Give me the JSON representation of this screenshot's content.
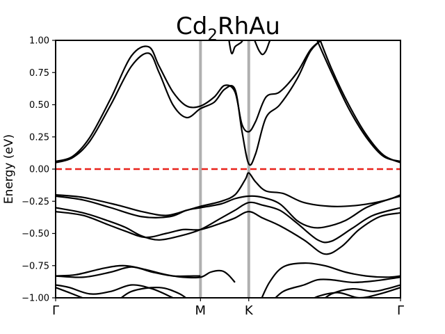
{
  "chart_data": {
    "type": "line",
    "title_main": "Cd",
    "title_sub": "2",
    "title_rest": "RhAu",
    "ylabel": "Energy (eV)",
    "ylim": [
      -1.0,
      1.0
    ],
    "xlim": [
      0,
      1
    ],
    "yticks": [
      1.0,
      0.75,
      0.5,
      0.25,
      0.0,
      -0.25,
      -0.5,
      -0.75,
      -1.0
    ],
    "ytick_labels": [
      "1.00",
      "0.75",
      "0.50",
      "0.25",
      "0.00",
      "−0.25",
      "−0.50",
      "−0.75",
      "−1.00"
    ],
    "kpoints": [
      {
        "label": "Γ",
        "x": 0.0
      },
      {
        "label": "M",
        "x": 0.42
      },
      {
        "label": "K",
        "x": 0.56
      },
      {
        "label": "Γ",
        "x": 1.0
      }
    ],
    "vlines": [
      0.42,
      0.56
    ],
    "vline_color": "#b0b0b0",
    "fermi_level": 0.0,
    "fermi_color": "#e8221b",
    "band_color": "#000000",
    "series": [
      {
        "x": [
          0,
          0.05,
          0.1,
          0.16,
          0.22,
          0.27,
          0.3,
          0.34,
          0.38,
          0.42,
          0.46,
          0.49,
          0.52,
          0.54,
          0.56,
          0.58,
          0.61,
          0.65,
          0.7,
          0.74,
          0.78,
          0.8
        ],
        "y": [
          0.06,
          0.1,
          0.25,
          0.55,
          0.88,
          0.95,
          0.8,
          0.6,
          0.49,
          0.49,
          0.56,
          0.65,
          0.6,
          0.35,
          0.29,
          0.37,
          0.56,
          0.6,
          0.75,
          0.93,
          1.02,
          1.05
        ]
      },
      {
        "x": [
          0,
          0.05,
          0.1,
          0.16,
          0.22,
          0.27,
          0.3,
          0.34,
          0.38,
          0.42,
          0.46,
          0.49,
          0.52,
          0.54,
          0.56,
          0.58,
          0.61,
          0.65,
          0.7,
          0.74,
          0.78,
          0.8
        ],
        "y": [
          0.05,
          0.09,
          0.22,
          0.5,
          0.8,
          0.9,
          0.75,
          0.5,
          0.4,
          0.47,
          0.52,
          0.62,
          0.62,
          0.3,
          0.04,
          0.12,
          0.4,
          0.5,
          0.7,
          0.92,
          1.02,
          1.05
        ]
      },
      {
        "x": [
          0.75,
          0.8,
          0.85,
          0.9,
          0.95,
          1.0
        ],
        "y": [
          1.05,
          0.75,
          0.47,
          0.25,
          0.1,
          0.06
        ]
      },
      {
        "x": [
          0.76,
          0.8,
          0.85,
          0.9,
          0.95,
          1.0
        ],
        "y": [
          1.05,
          0.78,
          0.5,
          0.27,
          0.11,
          0.05
        ]
      },
      {
        "x": [
          0.5,
          0.51,
          0.52,
          0.53,
          0.54,
          0.55
        ],
        "y": [
          1.05,
          0.9,
          0.95,
          0.97,
          0.99,
          1.05
        ]
      },
      {
        "x": [
          0.57,
          0.58,
          0.59,
          0.6,
          0.61,
          0.62,
          0.63
        ],
        "y": [
          1.05,
          0.98,
          0.92,
          0.89,
          0.92,
          0.99,
          1.05
        ]
      },
      {
        "x": [
          0,
          0.08,
          0.18,
          0.25,
          0.32,
          0.38,
          0.42,
          0.48,
          0.52,
          0.55,
          0.56,
          0.58,
          0.61,
          0.66,
          0.72,
          0.8,
          0.88,
          0.96,
          1.0
        ],
        "y": [
          -0.2,
          -0.22,
          -0.28,
          -0.33,
          -0.36,
          -0.32,
          -0.29,
          -0.25,
          -0.2,
          -0.08,
          -0.03,
          -0.1,
          -0.17,
          -0.19,
          -0.26,
          -0.29,
          -0.28,
          -0.24,
          -0.2
        ]
      },
      {
        "x": [
          0,
          0.08,
          0.16,
          0.25,
          0.33,
          0.38,
          0.42,
          0.48,
          0.52,
          0.56,
          0.6,
          0.65,
          0.7,
          0.74,
          0.78,
          0.84,
          0.9,
          0.96,
          1.0
        ],
        "y": [
          -0.21,
          -0.24,
          -0.3,
          -0.37,
          -0.37,
          -0.32,
          -0.3,
          -0.27,
          -0.23,
          -0.21,
          -0.22,
          -0.27,
          -0.4,
          -0.45,
          -0.45,
          -0.4,
          -0.3,
          -0.24,
          -0.21
        ]
      },
      {
        "x": [
          0,
          0.08,
          0.15,
          0.2,
          0.25,
          0.3,
          0.36,
          0.42,
          0.48,
          0.52,
          0.56,
          0.6,
          0.65,
          0.7,
          0.76,
          0.8,
          0.86,
          0.92,
          1.0
        ],
        "y": [
          -0.3,
          -0.34,
          -0.4,
          -0.45,
          -0.52,
          -0.55,
          -0.52,
          -0.47,
          -0.38,
          -0.32,
          -0.26,
          -0.28,
          -0.32,
          -0.42,
          -0.55,
          -0.56,
          -0.46,
          -0.36,
          -0.3
        ]
      },
      {
        "x": [
          0,
          0.08,
          0.15,
          0.2,
          0.26,
          0.32,
          0.37,
          0.42,
          0.48,
          0.52,
          0.56,
          0.6,
          0.65,
          0.72,
          0.78,
          0.83,
          0.88,
          0.94,
          1.0
        ],
        "y": [
          -0.33,
          -0.36,
          -0.43,
          -0.48,
          -0.53,
          -0.5,
          -0.47,
          -0.47,
          -0.42,
          -0.38,
          -0.33,
          -0.38,
          -0.44,
          -0.55,
          -0.66,
          -0.6,
          -0.47,
          -0.37,
          -0.34
        ]
      },
      {
        "x": [
          0,
          0.06,
          0.14,
          0.2,
          0.26,
          0.32,
          0.37,
          0.42,
          0.45,
          0.48,
          0.5,
          0.52
        ],
        "y": [
          -0.83,
          -0.82,
          -0.77,
          -0.75,
          -0.78,
          -0.82,
          -0.84,
          -0.84,
          -0.8,
          -0.79,
          -0.82,
          -0.88
        ]
      },
      {
        "x": [
          0,
          0.08,
          0.16,
          0.22,
          0.28,
          0.34,
          0.4,
          0.42
        ],
        "y": [
          -0.83,
          -0.84,
          -0.8,
          -0.76,
          -0.8,
          -0.83,
          -0.83,
          -0.83
        ]
      },
      {
        "x": [
          0.59,
          0.62,
          0.66,
          0.72,
          0.78,
          0.84,
          0.9,
          0.96,
          1.0
        ],
        "y": [
          -1.05,
          -0.88,
          -0.76,
          -0.73,
          -0.75,
          -0.8,
          -0.83,
          -0.84,
          -0.83
        ]
      },
      {
        "x": [
          0.62,
          0.66,
          0.72,
          0.76,
          0.8,
          0.86,
          0.92,
          1.0
        ],
        "y": [
          -1.05,
          -0.95,
          -0.9,
          -0.86,
          -0.86,
          -0.88,
          -0.87,
          -0.84
        ]
      },
      {
        "x": [
          0,
          0.04,
          0.1,
          0.16,
          0.22,
          0.28,
          0.34,
          0.38
        ],
        "y": [
          -0.9,
          -0.92,
          -0.97,
          -0.95,
          -0.9,
          -0.93,
          -1.0,
          -1.05
        ]
      },
      {
        "x": [
          0,
          0.04,
          0.1,
          0.16,
          0.22,
          0.3,
          0.36,
          0.4
        ],
        "y": [
          -0.92,
          -0.96,
          -1.02,
          -1.05,
          -0.95,
          -0.92,
          -0.97,
          -1.05
        ]
      },
      {
        "x": [
          0.76,
          0.8,
          0.86,
          0.92,
          0.96,
          1.0
        ],
        "y": [
          -1.05,
          -0.97,
          -0.93,
          -0.95,
          -0.93,
          -0.9
        ]
      },
      {
        "x": [
          0.72,
          0.76,
          0.82,
          0.88,
          0.94,
          1.0
        ],
        "y": [
          -1.05,
          -0.99,
          -0.96,
          -1.0,
          -0.97,
          -0.92
        ]
      }
    ]
  }
}
